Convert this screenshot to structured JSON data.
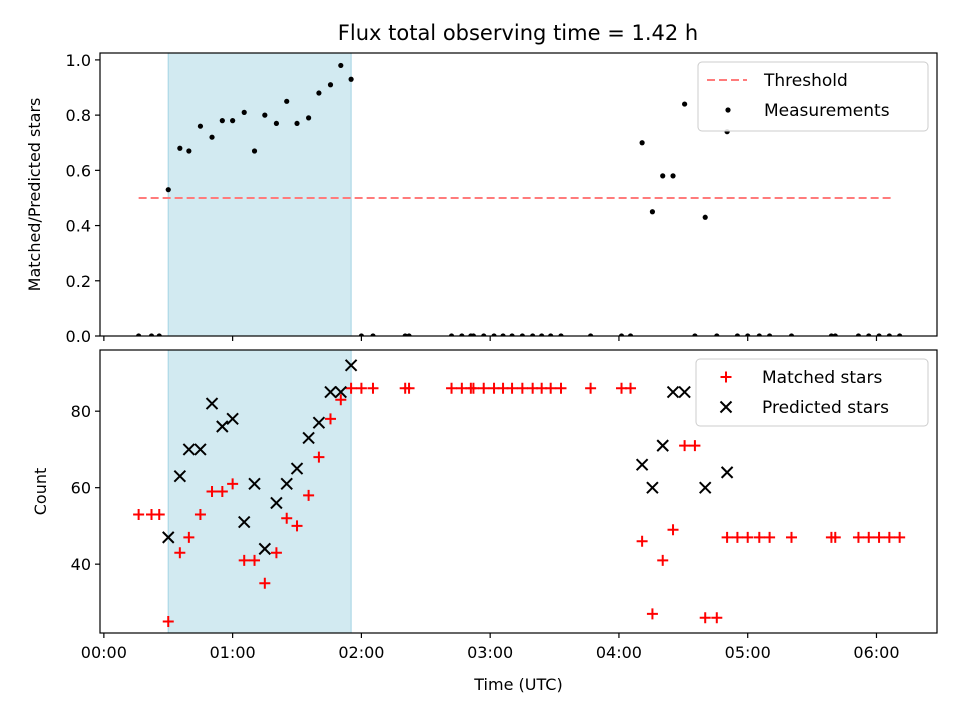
{
  "title": "Flux total observing time = 1.42 h",
  "colors": {
    "threshold": "#ff7b7b",
    "measurement": "#000000",
    "matched": "#ff0000",
    "predicted": "#000000",
    "shade": "#add8e6"
  },
  "chart_data": [
    {
      "type": "scatter",
      "name": "top-panel",
      "title": "Flux total observing time = 1.42 h",
      "ylabel": "Matched/Predicted stars",
      "xlabel": "",
      "x_unit": "hours (UTC)",
      "xlim": [
        -0.03,
        6.47
      ],
      "ylim": [
        0.0,
        1.025
      ],
      "yticks": [
        0.0,
        0.2,
        0.4,
        0.6,
        0.8,
        1.0
      ],
      "ytick_labels": [
        "0.0",
        "0.2",
        "0.4",
        "0.6",
        "0.8",
        "1.0"
      ],
      "legend_placement": "top-right",
      "shaded_interval": [
        0.5,
        1.92
      ],
      "threshold": {
        "name": "Threshold",
        "y": 0.5,
        "x": [
          0.27,
          6.13
        ]
      },
      "series": [
        {
          "name": "Measurements",
          "points": [
            [
              0.27,
              0.0
            ],
            [
              0.37,
              0.0
            ],
            [
              0.43,
              0.0
            ],
            [
              0.5,
              0.53
            ],
            [
              0.59,
              0.68
            ],
            [
              0.66,
              0.67
            ],
            [
              0.75,
              0.76
            ],
            [
              0.84,
              0.72
            ],
            [
              0.92,
              0.78
            ],
            [
              1.0,
              0.78
            ],
            [
              1.09,
              0.81
            ],
            [
              1.17,
              0.67
            ],
            [
              1.25,
              0.8
            ],
            [
              1.34,
              0.77
            ],
            [
              1.42,
              0.85
            ],
            [
              1.5,
              0.77
            ],
            [
              1.59,
              0.79
            ],
            [
              1.67,
              0.88
            ],
            [
              1.76,
              0.91
            ],
            [
              1.84,
              0.98
            ],
            [
              1.92,
              0.93
            ],
            [
              2.0,
              0.0
            ],
            [
              2.09,
              0.0
            ],
            [
              2.34,
              0.0
            ],
            [
              2.37,
              0.0
            ],
            [
              2.7,
              0.0
            ],
            [
              2.78,
              0.0
            ],
            [
              2.85,
              0.0
            ],
            [
              2.87,
              0.0
            ],
            [
              2.95,
              0.0
            ],
            [
              3.03,
              0.0
            ],
            [
              3.1,
              0.0
            ],
            [
              3.17,
              0.0
            ],
            [
              3.25,
              0.0
            ],
            [
              3.33,
              0.0
            ],
            [
              3.4,
              0.0
            ],
            [
              3.47,
              0.0
            ],
            [
              3.55,
              0.0
            ],
            [
              3.78,
              0.0
            ],
            [
              4.02,
              0.0
            ],
            [
              4.09,
              0.0
            ],
            [
              4.18,
              0.7
            ],
            [
              4.26,
              0.45
            ],
            [
              4.34,
              0.58
            ],
            [
              4.42,
              0.58
            ],
            [
              4.51,
              0.84
            ],
            [
              4.59,
              0.0
            ],
            [
              4.67,
              0.43
            ],
            [
              4.76,
              0.0
            ],
            [
              4.84,
              0.74
            ],
            [
              4.92,
              0.0
            ],
            [
              5.0,
              0.0
            ],
            [
              5.09,
              0.0
            ],
            [
              5.17,
              0.0
            ],
            [
              5.34,
              0.0
            ],
            [
              5.65,
              0.0
            ],
            [
              5.68,
              0.0
            ],
            [
              5.86,
              0.0
            ],
            [
              5.94,
              0.0
            ],
            [
              6.02,
              0.0
            ],
            [
              6.1,
              0.0
            ],
            [
              6.18,
              0.0
            ]
          ]
        }
      ]
    },
    {
      "type": "scatter",
      "name": "bottom-panel",
      "title": "",
      "ylabel": "Count",
      "xlabel": "Time (UTC)",
      "x_unit": "hours (UTC)",
      "xlim": [
        -0.03,
        6.47
      ],
      "ylim": [
        22,
        96
      ],
      "xticks": [
        0,
        1,
        2,
        3,
        4,
        5,
        6
      ],
      "xtick_labels": [
        "00:00",
        "01:00",
        "02:00",
        "03:00",
        "04:00",
        "05:00",
        "06:00"
      ],
      "yticks": [
        40,
        60,
        80
      ],
      "ytick_labels": [
        "40",
        "60",
        "80"
      ],
      "legend_placement": "top-right",
      "shaded_interval": [
        0.5,
        1.92
      ],
      "series": [
        {
          "name": "Matched stars",
          "marker": "plus",
          "points": [
            [
              0.27,
              53
            ],
            [
              0.37,
              53
            ],
            [
              0.43,
              53
            ],
            [
              0.5,
              25
            ],
            [
              0.59,
              43
            ],
            [
              0.66,
              47
            ],
            [
              0.75,
              53
            ],
            [
              0.84,
              59
            ],
            [
              0.92,
              59
            ],
            [
              1.0,
              61
            ],
            [
              1.09,
              41
            ],
            [
              1.17,
              41
            ],
            [
              1.25,
              35
            ],
            [
              1.34,
              43
            ],
            [
              1.42,
              52
            ],
            [
              1.5,
              50
            ],
            [
              1.59,
              58
            ],
            [
              1.67,
              68
            ],
            [
              1.76,
              78
            ],
            [
              1.84,
              83
            ],
            [
              1.92,
              86
            ],
            [
              2.0,
              86
            ],
            [
              2.09,
              86
            ],
            [
              2.34,
              86
            ],
            [
              2.37,
              86
            ],
            [
              2.7,
              86
            ],
            [
              2.78,
              86
            ],
            [
              2.85,
              86
            ],
            [
              2.87,
              86
            ],
            [
              2.95,
              86
            ],
            [
              3.03,
              86
            ],
            [
              3.1,
              86
            ],
            [
              3.17,
              86
            ],
            [
              3.25,
              86
            ],
            [
              3.33,
              86
            ],
            [
              3.4,
              86
            ],
            [
              3.47,
              86
            ],
            [
              3.55,
              86
            ],
            [
              3.78,
              86
            ],
            [
              4.02,
              86
            ],
            [
              4.09,
              86
            ],
            [
              4.18,
              46
            ],
            [
              4.26,
              27
            ],
            [
              4.34,
              41
            ],
            [
              4.42,
              49
            ],
            [
              4.51,
              71
            ],
            [
              4.59,
              71
            ],
            [
              4.67,
              26
            ],
            [
              4.76,
              26
            ],
            [
              4.84,
              47
            ],
            [
              4.92,
              47
            ],
            [
              5.0,
              47
            ],
            [
              5.09,
              47
            ],
            [
              5.17,
              47
            ],
            [
              5.34,
              47
            ],
            [
              5.65,
              47
            ],
            [
              5.68,
              47
            ],
            [
              5.86,
              47
            ],
            [
              5.94,
              47
            ],
            [
              6.02,
              47
            ],
            [
              6.1,
              47
            ],
            [
              6.18,
              47
            ]
          ]
        },
        {
          "name": "Predicted stars",
          "marker": "x",
          "points": [
            [
              0.5,
              47
            ],
            [
              0.59,
              63
            ],
            [
              0.66,
              70
            ],
            [
              0.75,
              70
            ],
            [
              0.84,
              82
            ],
            [
              0.92,
              76
            ],
            [
              1.0,
              78
            ],
            [
              1.09,
              51
            ],
            [
              1.17,
              61
            ],
            [
              1.25,
              44
            ],
            [
              1.34,
              56
            ],
            [
              1.42,
              61
            ],
            [
              1.5,
              65
            ],
            [
              1.59,
              73
            ],
            [
              1.67,
              77
            ],
            [
              1.76,
              85
            ],
            [
              1.84,
              85
            ],
            [
              1.92,
              92
            ],
            [
              4.18,
              66
            ],
            [
              4.26,
              60
            ],
            [
              4.34,
              71
            ],
            [
              4.42,
              85
            ],
            [
              4.51,
              85
            ],
            [
              4.67,
              60
            ],
            [
              4.84,
              64
            ]
          ]
        }
      ]
    }
  ]
}
